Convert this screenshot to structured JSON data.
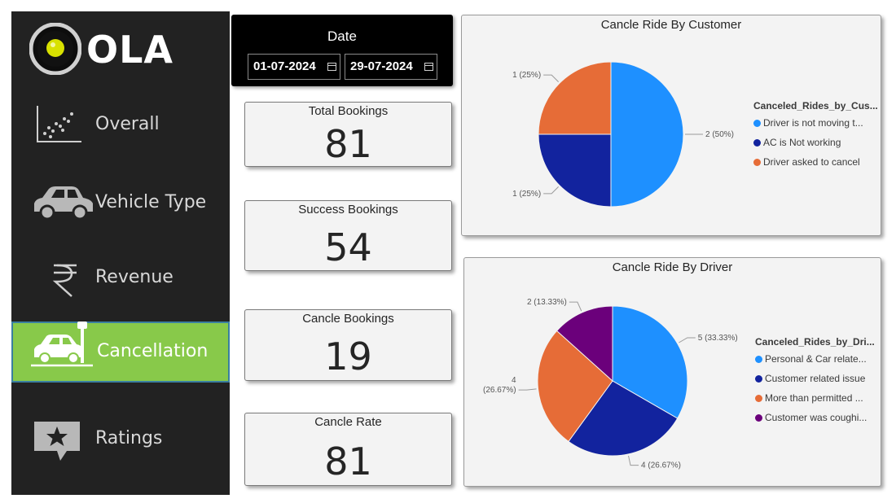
{
  "logo": {
    "text": "OLA"
  },
  "nav": [
    {
      "label": "Overall",
      "icon": "scatter-chart-icon",
      "active": false
    },
    {
      "label": "Vehicle Type",
      "icon": "car-icon",
      "active": false
    },
    {
      "label": "Revenue",
      "icon": "rupee-icon",
      "active": false
    },
    {
      "label": "Cancellation",
      "icon": "car-crash-icon",
      "active": true
    },
    {
      "label": "Ratings",
      "icon": "star-comment-icon",
      "active": false
    }
  ],
  "date_filter": {
    "title": "Date",
    "start": "01-07-2024",
    "end": "29-07-2024"
  },
  "kpis": [
    {
      "title": "Total Bookings",
      "value": "81"
    },
    {
      "title": "Success Bookings",
      "value": "54"
    },
    {
      "title": "Cancle Bookings",
      "value": "19"
    },
    {
      "title": "Cancle Rate",
      "value": "81"
    }
  ],
  "colors": {
    "blue": "#1e90ff",
    "navy": "#12239e",
    "orange": "#e66c37",
    "purple": "#6b007b",
    "active_nav": "#88c94a"
  },
  "chart_data": [
    {
      "type": "pie",
      "title": "Cancle Ride By Customer",
      "legend_title": "Canceled_Rides_by_Cus...",
      "legend_position": "right",
      "categories": [
        "Driver is not moving t...",
        "AC is Not working",
        "Driver asked to cancel"
      ],
      "values": [
        2,
        1,
        1
      ],
      "data_labels": [
        "2 (50%)",
        "1 (25%)",
        "1 (25%)"
      ],
      "colors": [
        "#1e90ff",
        "#12239e",
        "#e66c37"
      ]
    },
    {
      "type": "pie",
      "title": "Cancle Ride By Driver",
      "legend_title": "Canceled_Rides_by_Dri...",
      "legend_position": "right",
      "categories": [
        "Personal & Car relate...",
        "Customer related issue",
        "More than permitted ...",
        "Customer was coughi..."
      ],
      "values": [
        5,
        4,
        4,
        2
      ],
      "data_labels": [
        "5 (33.33%)",
        "4 (26.67%)",
        "4\n(26.67%)",
        "2 (13.33%)"
      ],
      "colors": [
        "#1e90ff",
        "#12239e",
        "#e66c37",
        "#6b007b"
      ]
    }
  ]
}
